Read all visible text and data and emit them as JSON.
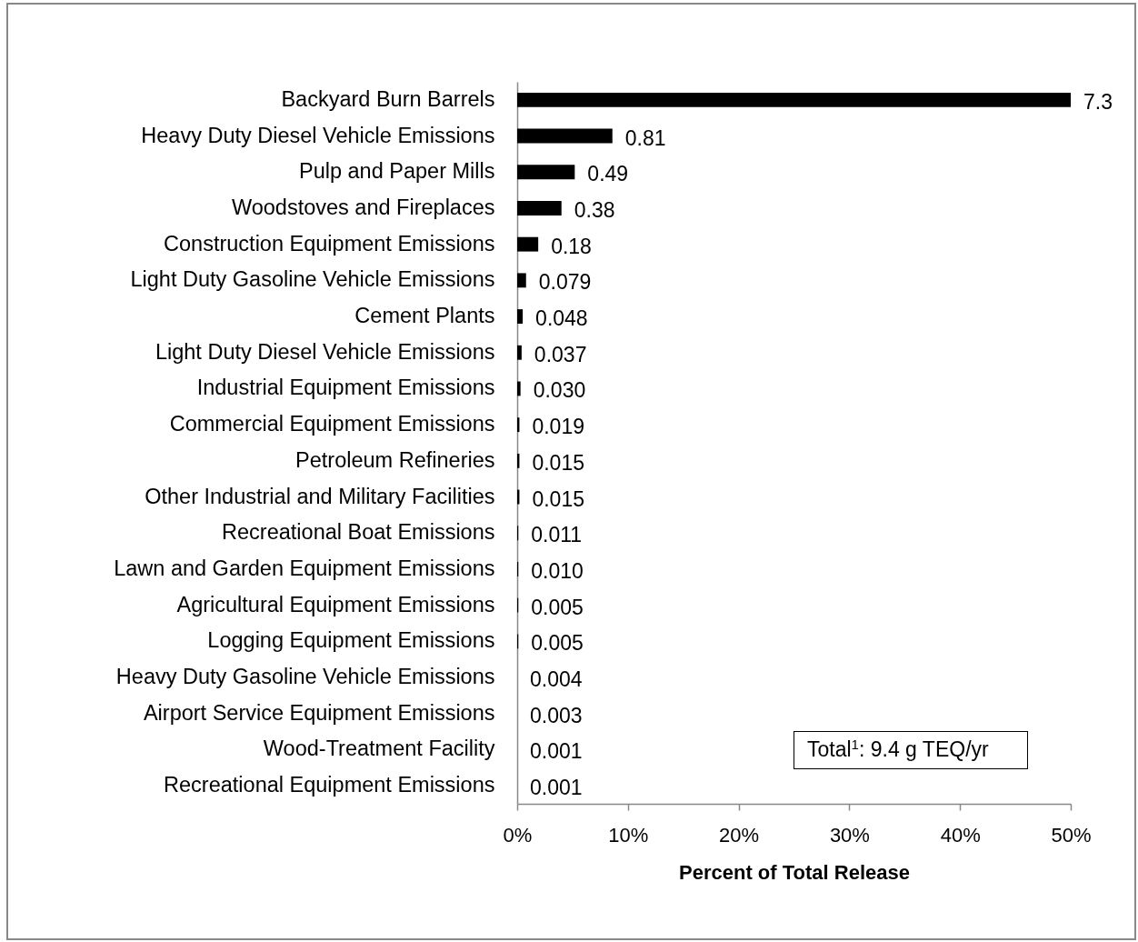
{
  "chart_data": {
    "type": "bar",
    "orientation": "horizontal",
    "xlabel": "Percent of Total Release",
    "categories": [
      "Backyard Burn Barrels",
      "Heavy Duty Diesel Vehicle Emissions",
      "Pulp and Paper Mills",
      "Woodstoves and Fireplaces",
      "Construction Equipment Emissions",
      "Light Duty Gasoline Vehicle Emissions",
      "Cement Plants",
      "Light Duty Diesel Vehicle Emissions",
      "Industrial Equipment Emissions",
      "Commercial Equipment Emissions",
      "Petroleum Refineries",
      "Other Industrial and Military Facilities",
      "Recreational Boat Emissions",
      "Lawn and Garden Equipment Emissions",
      "Agricultural Equipment Emissions",
      "Logging Equipment Emissions",
      "Heavy Duty Gasoline Vehicle Emissions",
      "Airport Service Equipment Emissions",
      "Wood-Treatment Facility",
      "Recreational Equipment Emissions"
    ],
    "values": [
      50,
      8.6,
      5.2,
      4.0,
      1.9,
      0.8,
      0.5,
      0.4,
      0.3,
      0.2,
      0.2,
      0.2,
      0.1,
      0.1,
      0.1,
      0.1,
      0.0,
      0.0,
      0.0,
      0.0
    ],
    "color": "#000000",
    "xlim": [
      0,
      50
    ],
    "xticks": [
      {
        "value": 0,
        "label": "0%"
      },
      {
        "value": 10,
        "label": "10%"
      },
      {
        "value": 20,
        "label": "20%"
      },
      {
        "value": 30,
        "label": "30%"
      },
      {
        "value": 40,
        "label": "40%"
      },
      {
        "value": 50,
        "label": "50%"
      }
    ],
    "annotations": [
      {
        "text": "7.3",
        "x": 50,
        "y": "Backyard Burn Barrels"
      },
      {
        "text": "0.81",
        "x": 8.6,
        "y": "Heavy Duty Diesel Vehicle Emissions"
      },
      {
        "text": "0.49",
        "x": 5.2,
        "y": "Pulp and Paper Mills"
      },
      {
        "text": "0.38",
        "x": 4.0,
        "y": "Woodstoves and Fireplaces"
      },
      {
        "text": "0.18",
        "x": 1.9,
        "y": "Construction Equipment Emissions"
      },
      {
        "text": "0.079",
        "x": 0.8,
        "y": "Light Duty Gasoline Vehicle Emissions"
      },
      {
        "text": "0.048",
        "x": 0.5,
        "y": "Cement Plants"
      },
      {
        "text": "0.037",
        "x": 0.4,
        "y": "Light Duty Diesel Vehicle Emissions"
      },
      {
        "text": "0.030",
        "x": 0.3,
        "y": "Industrial Equipment Emissions"
      },
      {
        "text": "0.019",
        "x": 0.2,
        "y": "Commercial Equipment Emissions"
      },
      {
        "text": "0.015",
        "x": 0.2,
        "y": "Petroleum Refineries"
      },
      {
        "text": "0.015",
        "x": 0.2,
        "y": "Other Industrial and Military Facilities"
      },
      {
        "text": "0.011",
        "x": 0.1,
        "y": "Recreational Boat Emissions"
      },
      {
        "text": "0.010",
        "x": 0.1,
        "y": "Lawn and Garden Equipment Emissions"
      },
      {
        "text": "0.005",
        "x": 0.1,
        "y": "Agricultural Equipment Emissions"
      },
      {
        "text": "0.005",
        "x": 0.1,
        "y": "Logging Equipment Emissions"
      },
      {
        "text": "0.004",
        "x": 0.0,
        "y": "Heavy Duty Gasoline Vehicle Emissions"
      },
      {
        "text": "0.003",
        "x": 0.0,
        "y": "Airport Service Equipment Emissions"
      },
      {
        "text": "0.001",
        "x": 0.0,
        "y": "Wood-Treatment Facility"
      },
      {
        "text": "0.001",
        "x": 0.0,
        "y": "Recreational Equipment Emissions"
      },
      "Total$^{1}$: 9.4 g TEQ/yr"
    ]
  }
}
